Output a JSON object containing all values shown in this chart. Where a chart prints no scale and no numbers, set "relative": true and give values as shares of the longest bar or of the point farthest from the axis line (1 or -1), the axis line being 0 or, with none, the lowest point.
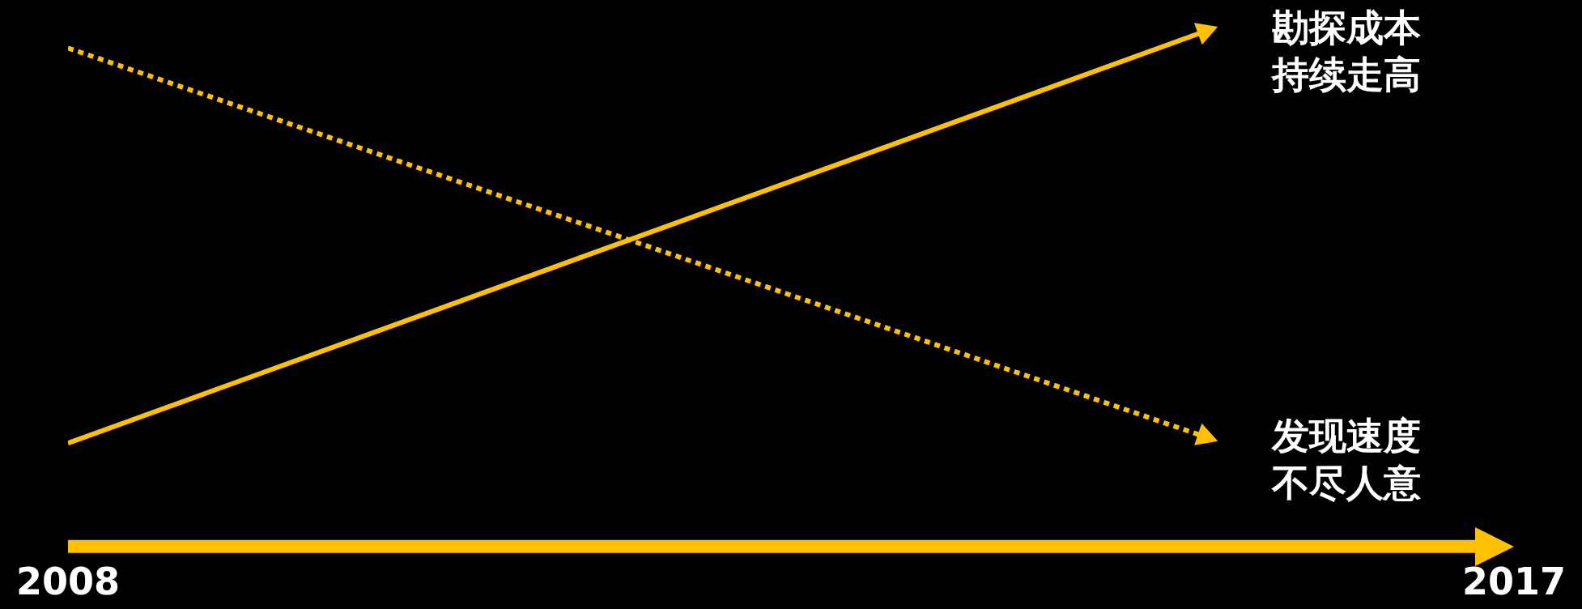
{
  "chart_data": {
    "type": "line",
    "relative": true,
    "x": [
      2008,
      2015.1
    ],
    "xlim": [
      2008,
      2017
    ],
    "xticks": [
      2008,
      2017
    ],
    "tick_labels": "x",
    "series": [
      {
        "name": "勘探成本持续走高",
        "color": "#ffc000",
        "line_style": "solid",
        "values": [
          0.2,
          1
        ]
      },
      {
        "name": "发现速度不尽人意",
        "color": "#ffc000",
        "line_style": "dotted",
        "values": [
          0.965,
          0.21
        ]
      }
    ]
  }
}
